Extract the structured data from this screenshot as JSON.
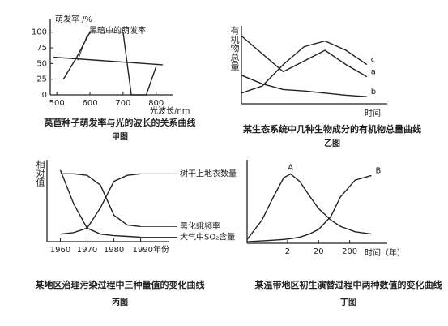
{
  "chart_data": [
    {
      "type": "line",
      "title": "莴苣种子萌发率与光的波长的关系曲线",
      "subtitle": "甲图",
      "y_label": "萌发率 /%",
      "x_label": "光波长/nm",
      "xlim": [
        480,
        830
      ],
      "ylim": [
        0,
        110
      ],
      "xticks": [
        500,
        600,
        700,
        800
      ],
      "yticks": [
        0,
        25,
        50,
        75,
        100
      ],
      "series": [
        {
          "color": "#222",
          "x": [
            520,
            560,
            600,
            650,
            700,
            725,
            770,
            800
          ],
          "values": [
            25,
            60,
            100,
            100,
            100,
            0,
            0,
            45
          ]
        },
        {
          "name": "黑暗中的萌发率",
          "color": "#222",
          "x": [
            490,
            820
          ],
          "values": [
            60,
            48
          ]
        }
      ]
    },
    {
      "type": "line",
      "title": "某生态系统中几种生物成分的有机物总量曲线",
      "subtitle": "乙图",
      "y_label": "有机物总量",
      "x_label": "时间",
      "xlim": [
        0,
        100
      ],
      "ylim": [
        0,
        100
      ],
      "x": [
        0,
        15,
        30,
        45,
        60,
        75,
        90
      ],
      "series": [
        {
          "name": "a",
          "color": "#222",
          "values": [
            95,
            70,
            45,
            60,
            75,
            55,
            38
          ]
        },
        {
          "name": "b",
          "color": "#222",
          "values": [
            40,
            28,
            20,
            18,
            15,
            12,
            10
          ]
        },
        {
          "name": "c",
          "color": "#222",
          "values": [
            15,
            25,
            55,
            80,
            88,
            75,
            55
          ]
        }
      ]
    },
    {
      "type": "line",
      "title": "某地区治理污染过程中三种量值的变化曲线",
      "subtitle": "丙图",
      "y_label": "相对值",
      "xlim": [
        1955,
        1998
      ],
      "ylim": [
        0,
        100
      ],
      "xticks": [
        1960,
        1970,
        1980,
        {
          "value": 1990,
          "label": "1990年份"
        }
      ],
      "x": [
        1960,
        1965,
        1970,
        1975,
        1980,
        1985,
        1990
      ],
      "series": [
        {
          "name": "树干上地衣数量",
          "color": "#222",
          "values": [
            10,
            12,
            18,
            45,
            80,
            88,
            90
          ]
        },
        {
          "name": "黑化蛾频率",
          "color": "#222",
          "values": [
            90,
            90,
            88,
            75,
            35,
            22,
            20
          ]
        },
        {
          "name": "大气中SO₂含量",
          "color": "#222",
          "values": [
            95,
            50,
            18,
            10,
            8,
            7,
            6
          ]
        }
      ]
    },
    {
      "type": "line",
      "title": "某温带地区初生演替过程中两种数值的变化曲线",
      "subtitle": "丁图",
      "x_label": "时间（年）",
      "log_x": true,
      "xlim": [
        0.1,
        2000
      ],
      "ylim": [
        0,
        100
      ],
      "xticks": [
        2,
        20,
        200
      ],
      "x": [
        0.1,
        0.3,
        0.7,
        1.5,
        2.5,
        5,
        10,
        20,
        50,
        100,
        300,
        1000
      ],
      "series": [
        {
          "name": "A",
          "color": "#222",
          "values": [
            5,
            30,
            60,
            85,
            90,
            80,
            62,
            45,
            30,
            22,
            15,
            12
          ]
        },
        {
          "name": "B",
          "color": "#222",
          "values": [
            2,
            3,
            4,
            5,
            6,
            8,
            12,
            18,
            35,
            60,
            82,
            88
          ]
        }
      ]
    }
  ]
}
